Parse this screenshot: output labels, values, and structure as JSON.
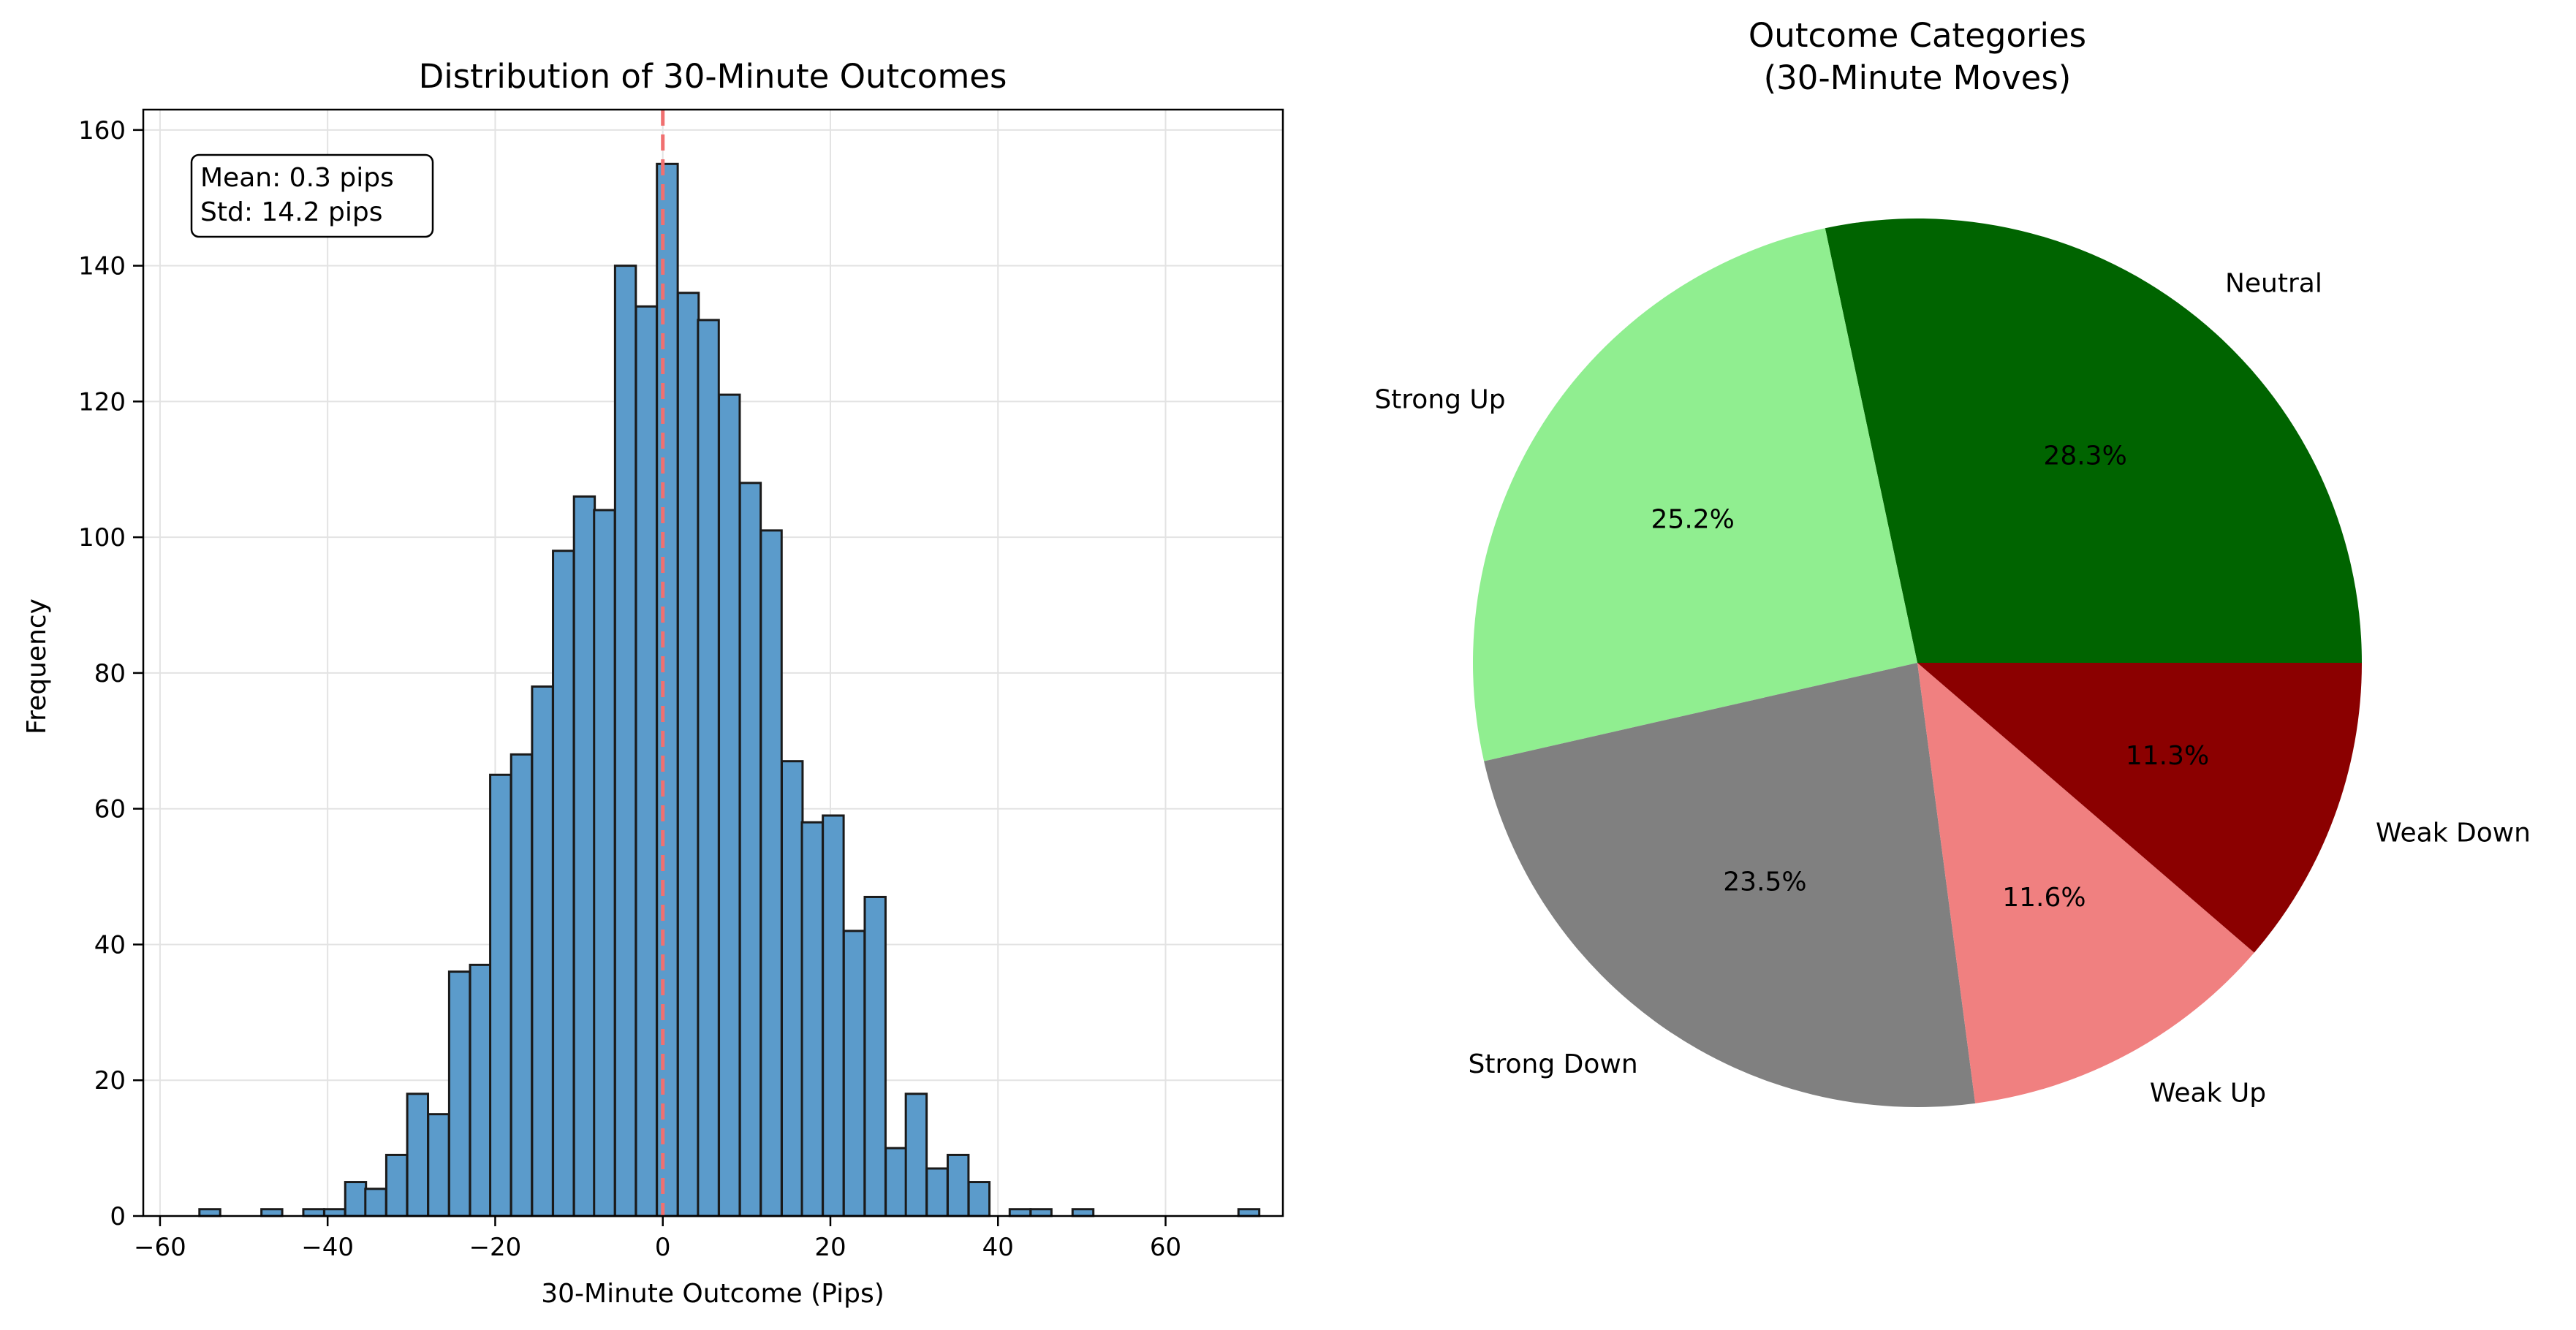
{
  "chart_data": [
    {
      "type": "bar",
      "subtype": "histogram",
      "title": "Distribution of 30-Minute Outcomes",
      "xlabel": "30-Minute Outcome (Pips)",
      "ylabel": "Frequency",
      "xlim": [
        -62,
        74
      ],
      "ylim": [
        0,
        163
      ],
      "grid": true,
      "xticks": [
        -60,
        -40,
        -20,
        0,
        20,
        40,
        60
      ],
      "yticks": [
        0,
        20,
        40,
        60,
        80,
        100,
        120,
        140,
        160
      ],
      "bar_color": "#5b9bcb",
      "bar_edge_color": "#1a1a1a",
      "bin_width": 2.48,
      "bins": [
        {
          "x": -55.3,
          "count": 1
        },
        {
          "x": -47.9,
          "count": 1
        },
        {
          "x": -42.9,
          "count": 1
        },
        {
          "x": -40.4,
          "count": 1
        },
        {
          "x": -37.9,
          "count": 5
        },
        {
          "x": -35.5,
          "count": 4
        },
        {
          "x": -33.0,
          "count": 9
        },
        {
          "x": -30.5,
          "count": 18
        },
        {
          "x": -28.0,
          "count": 15
        },
        {
          "x": -25.5,
          "count": 36
        },
        {
          "x": -23.0,
          "count": 37
        },
        {
          "x": -20.6,
          "count": 65
        },
        {
          "x": -18.1,
          "count": 68
        },
        {
          "x": -15.6,
          "count": 78
        },
        {
          "x": -13.1,
          "count": 98
        },
        {
          "x": -10.6,
          "count": 106
        },
        {
          "x": -8.2,
          "count": 104
        },
        {
          "x": -5.7,
          "count": 140
        },
        {
          "x": -3.2,
          "count": 134
        },
        {
          "x": -0.7,
          "count": 155
        },
        {
          "x": 1.8,
          "count": 136
        },
        {
          "x": 4.2,
          "count": 132
        },
        {
          "x": 6.7,
          "count": 121
        },
        {
          "x": 9.2,
          "count": 108
        },
        {
          "x": 11.7,
          "count": 101
        },
        {
          "x": 14.2,
          "count": 67
        },
        {
          "x": 16.6,
          "count": 58
        },
        {
          "x": 19.1,
          "count": 59
        },
        {
          "x": 21.6,
          "count": 42
        },
        {
          "x": 24.1,
          "count": 47
        },
        {
          "x": 26.6,
          "count": 10
        },
        {
          "x": 29.0,
          "count": 18
        },
        {
          "x": 31.5,
          "count": 7
        },
        {
          "x": 34.0,
          "count": 9
        },
        {
          "x": 36.5,
          "count": 5
        },
        {
          "x": 41.4,
          "count": 1
        },
        {
          "x": 43.9,
          "count": 1
        },
        {
          "x": 48.9,
          "count": 1
        },
        {
          "x": 68.7,
          "count": 1
        }
      ],
      "mean_line": {
        "x": 0,
        "color": "#f07070",
        "style": "dashed"
      },
      "annotation": {
        "lines": [
          "Mean: 0.3 pips",
          "Std: 14.2 pips"
        ]
      }
    },
    {
      "type": "pie",
      "title": "Outcome Categories\n(30-Minute Moves)",
      "title_lines": [
        "Outcome Categories",
        "(30-Minute Moves)"
      ],
      "start_angle_deg": 0,
      "direction": "counterclockwise",
      "slices": [
        {
          "label": "Neutral",
          "value": 28.3,
          "pct_label": "28.3%",
          "color": "#006400"
        },
        {
          "label": "Strong Up",
          "value": 25.2,
          "pct_label": "25.2%",
          "color": "#90ee90"
        },
        {
          "label": "Strong Down",
          "value": 23.5,
          "pct_label": "23.5%",
          "color": "#808080"
        },
        {
          "label": "Weak Up",
          "value": 11.6,
          "pct_label": "11.6%",
          "color": "#f08080"
        },
        {
          "label": "Weak Down",
          "value": 11.3,
          "pct_label": "11.3%",
          "color": "#8b0000"
        }
      ]
    }
  ]
}
